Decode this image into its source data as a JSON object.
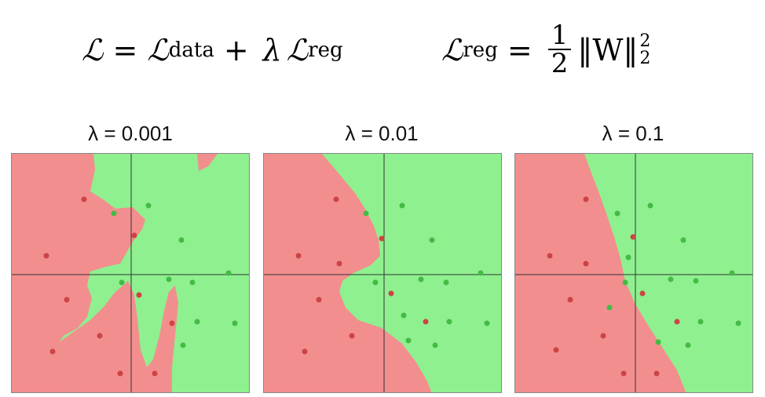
{
  "formula": {
    "loss": "ℒ = ℒ",
    "loss_sub_data": "data",
    "plus": "+",
    "lambda": "λ",
    "loss_reg": "ℒ",
    "loss_sub_reg": "reg",
    "reg_lhs": "ℒ",
    "reg_lhs_sub": "reg",
    "equals": "=",
    "frac_num": "1",
    "frac_den": "2",
    "norm_text": "‖W‖",
    "norm_sup": "2",
    "norm_sub": "2"
  },
  "panels": [
    {
      "title": "λ = 0.001"
    },
    {
      "title": "λ = 0.01"
    },
    {
      "title": "λ = 0.1"
    }
  ],
  "colors": {
    "red_region": "#f28e8e",
    "green_region": "#8ff08f",
    "red_point": "#cc4444",
    "green_point": "#44bb44",
    "axis": "#333333"
  }
}
